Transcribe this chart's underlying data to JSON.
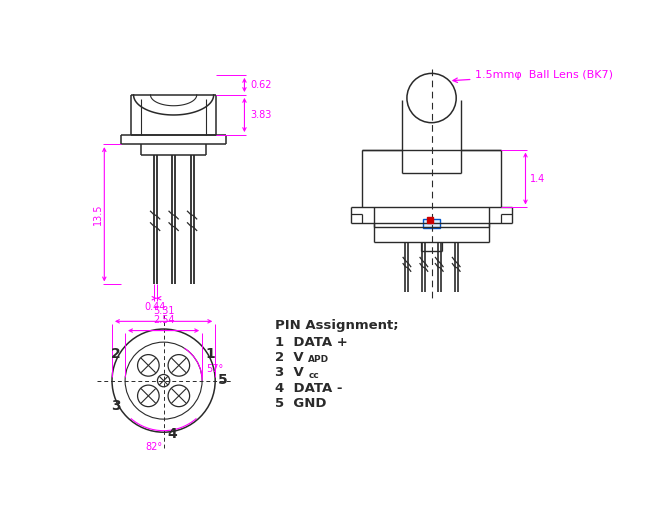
{
  "bg_color": "#ffffff",
  "line_color": "#2a2a2a",
  "dim_color": "#ff00ff",
  "blue_color": "#0055cc",
  "red_color": "#cc0000",
  "pin_assignment_title": "PIN Assignment;",
  "lens_label": "1.5mmφ  Ball Lens (BK7)",
  "dim_135": "13.5",
  "dim_383": "3.83",
  "dim_062": "0.62",
  "dim_044": "0.44",
  "dim_531": "5.31",
  "dim_254": "2.54",
  "dim_14": "1.4",
  "dim_57": "57°",
  "dim_82": "82°"
}
